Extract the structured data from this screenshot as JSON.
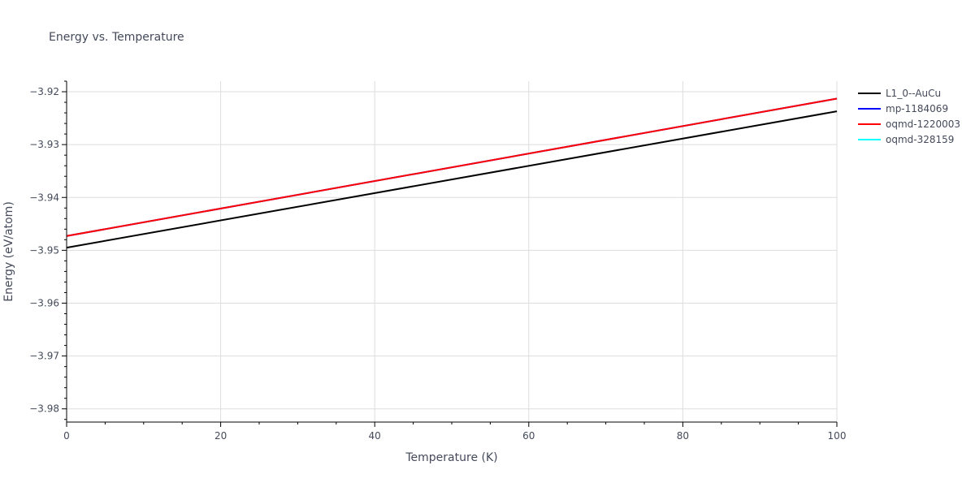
{
  "chart_data": {
    "type": "line",
    "title": "Energy vs. Temperature",
    "xlabel": "Temperature (K)",
    "ylabel": "Energy (eV/atom)",
    "xlim": [
      0,
      100
    ],
    "ylim": [
      -3.9825,
      -3.918
    ],
    "x_ticks": [
      0,
      20,
      40,
      60,
      80,
      100
    ],
    "x_tick_labels": [
      "0",
      "20",
      "40",
      "60",
      "80",
      "100"
    ],
    "y_ticks": [
      -3.98,
      -3.97,
      -3.96,
      -3.95,
      -3.94,
      -3.93,
      -3.92
    ],
    "y_tick_labels": [
      "−3.98",
      "−3.97",
      "−3.96",
      "−3.95",
      "−3.94",
      "−3.93",
      "−3.92"
    ],
    "grid": true,
    "legend_position": "top-right",
    "series": [
      {
        "name": "L1_0--AuCu",
        "color": "#000000",
        "x": [
          0,
          100
        ],
        "y": [
          -3.9495,
          -3.9237
        ]
      },
      {
        "name": "mp-1184069",
        "color": "#0000ff",
        "x": [
          0,
          100
        ],
        "y": [
          -3.9473,
          -3.9213
        ]
      },
      {
        "name": "oqmd-1220003",
        "color": "#ff0000",
        "x": [
          0,
          100
        ],
        "y": [
          -3.9473,
          -3.9213
        ]
      },
      {
        "name": "oqmd-328159",
        "color": "#00ffff",
        "x": [],
        "y": []
      }
    ]
  }
}
